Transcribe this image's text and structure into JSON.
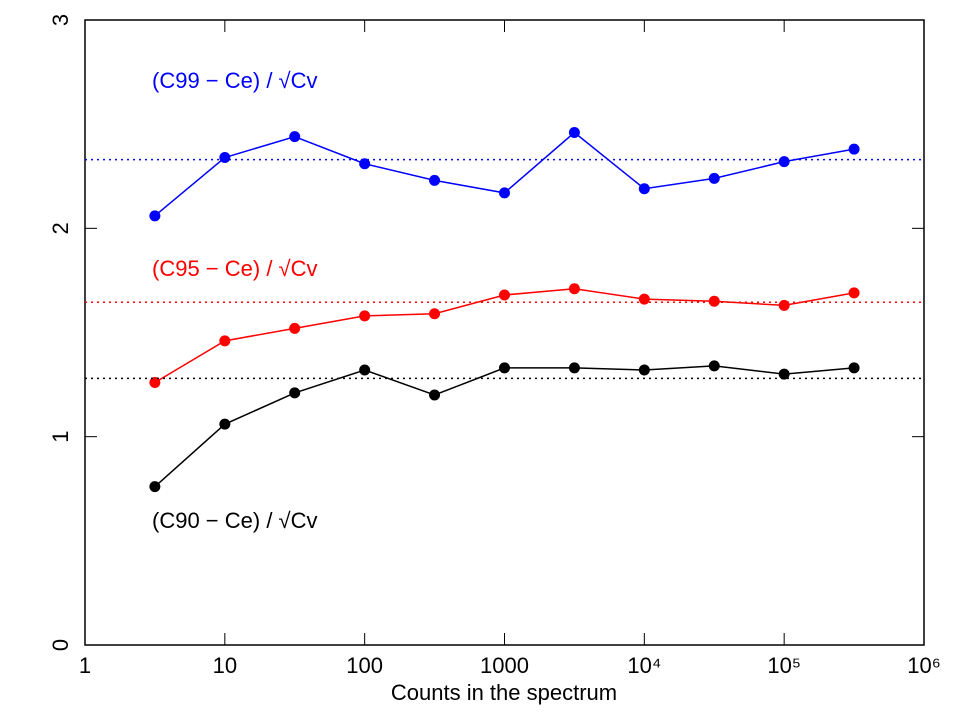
{
  "chart_data": {
    "type": "line",
    "xlabel": "Counts in the spectrum",
    "xscale": "log",
    "x": [
      3.16,
      10,
      31.6,
      100,
      316,
      1000,
      3162,
      10000,
      31623,
      100000,
      316228
    ],
    "series": [
      {
        "name": "(C99 − Ce) / √Cv",
        "color": "#0000ff",
        "reference": 2.33,
        "values": [
          2.06,
          2.34,
          2.44,
          2.31,
          2.23,
          2.17,
          2.46,
          2.19,
          2.24,
          2.32,
          2.38
        ]
      },
      {
        "name": "(C95 − Ce) / √Cv",
        "color": "#ff0000",
        "reference": 1.645,
        "values": [
          1.26,
          1.46,
          1.52,
          1.58,
          1.59,
          1.68,
          1.71,
          1.66,
          1.65,
          1.63,
          1.69
        ]
      },
      {
        "name": "(C90 − Ce) / √Cv",
        "color": "#000000",
        "reference": 1.28,
        "values": [
          0.76,
          1.06,
          1.21,
          1.32,
          1.2,
          1.33,
          1.33,
          1.32,
          1.34,
          1.3,
          1.33
        ]
      }
    ],
    "xlim": [
      1,
      1000000
    ],
    "xticks": [
      1,
      10,
      100,
      1000,
      {
        "value": 10000,
        "label": "10⁴"
      },
      {
        "value": 100000,
        "label": "10⁵"
      },
      {
        "value": 1000000,
        "label": "10⁶"
      }
    ],
    "ylim": [
      0,
      3
    ],
    "yticks": [
      0,
      1,
      2,
      3
    ],
    "grid": false
  }
}
